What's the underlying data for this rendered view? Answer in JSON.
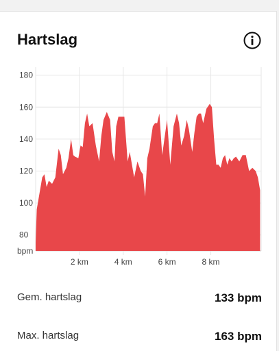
{
  "header": {
    "title": "Hartslag"
  },
  "icons": {
    "info": "info-circle-icon"
  },
  "colors": {
    "fill": "#e8474a",
    "grid": "#e6e6e6",
    "axis_text": "#444444"
  },
  "chart_data": {
    "type": "area",
    "title": "",
    "ylabel": "bpm",
    "xlabel": "",
    "yticks": [
      {
        "value": 80,
        "label": "80"
      },
      {
        "value": 100,
        "label": "100"
      },
      {
        "value": 120,
        "label": "120"
      },
      {
        "value": 140,
        "label": "140"
      },
      {
        "value": 160,
        "label": "160"
      },
      {
        "value": 180,
        "label": "180"
      }
    ],
    "xticks": [
      {
        "value": 2,
        "label": "2 km"
      },
      {
        "value": 4,
        "label": "4 km"
      },
      {
        "value": 6,
        "label": "6 km"
      },
      {
        "value": 8,
        "label": "8 km"
      }
    ],
    "ylim": [
      70,
      185
    ],
    "xlim": [
      0,
      10.3
    ],
    "grid": true,
    "x": [
      0,
      0.05,
      0.15,
      0.3,
      0.4,
      0.5,
      0.6,
      0.75,
      0.9,
      1.05,
      1.15,
      1.25,
      1.4,
      1.5,
      1.62,
      1.72,
      1.8,
      1.95,
      2.05,
      2.15,
      2.25,
      2.35,
      2.45,
      2.6,
      2.75,
      2.9,
      3.0,
      3.1,
      3.25,
      3.4,
      3.5,
      3.6,
      3.68,
      3.78,
      3.9,
      4.05,
      4.2,
      4.3,
      4.4,
      4.5,
      4.65,
      4.8,
      4.9,
      5.0,
      5.1,
      5.2,
      5.35,
      5.45,
      5.55,
      5.65,
      5.78,
      5.88,
      6.0,
      6.15,
      6.3,
      6.45,
      6.55,
      6.65,
      6.78,
      6.9,
      7.0,
      7.15,
      7.25,
      7.35,
      7.45,
      7.55,
      7.65,
      7.8,
      7.95,
      8.05,
      8.15,
      8.25,
      8.35,
      8.45,
      8.55,
      8.65,
      8.75,
      8.85,
      8.95,
      9.05,
      9.15,
      9.3,
      9.45,
      9.6,
      9.75,
      9.9,
      10.05,
      10.15,
      10.25
    ],
    "series": [
      {
        "values": [
          75,
          96,
          104,
          116,
          118,
          110,
          114,
          112,
          116,
          134,
          130,
          118,
          122,
          128,
          140,
          130,
          129,
          128,
          136,
          135,
          150,
          156,
          148,
          150,
          136,
          126,
          142,
          152,
          157,
          152,
          132,
          126,
          148,
          154,
          154,
          154,
          126,
          132,
          124,
          116,
          126,
          120,
          118,
          104,
          128,
          134,
          148,
          150,
          150,
          156,
          130,
          140,
          152,
          124,
          148,
          156,
          150,
          136,
          142,
          152,
          146,
          132,
          144,
          154,
          156,
          156,
          150,
          159,
          162,
          160,
          140,
          124,
          124,
          122,
          128,
          130,
          124,
          128,
          126,
          128,
          129,
          126,
          130,
          130,
          120,
          122,
          120,
          116,
          108
        ]
      }
    ]
  },
  "stats": [
    {
      "label": "Gem. hartslag",
      "value": "133 bpm"
    },
    {
      "label": "Max. hartslag",
      "value": "163 bpm"
    }
  ]
}
